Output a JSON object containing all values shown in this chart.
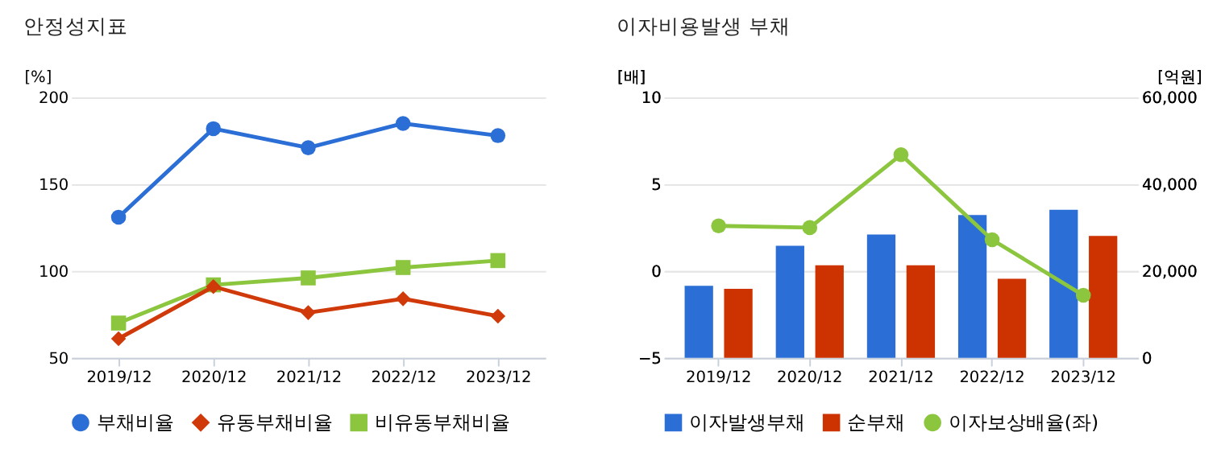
{
  "chart_data": [
    {
      "type": "line",
      "title": "안정성지표",
      "ylabel": "[%]",
      "categories": [
        "2019/12",
        "2020/12",
        "2021/12",
        "2022/12",
        "2023/12"
      ],
      "ylim": [
        50,
        200
      ],
      "yticks": [
        50,
        100,
        150,
        200
      ],
      "grid": "y",
      "legend": "bottom",
      "line_style": "solid",
      "series": [
        {
          "name": "부채비율",
          "color": "#2b6fd6",
          "marker": "circle",
          "values": [
            131,
            182,
            171,
            185,
            178
          ]
        },
        {
          "name": "유동부채비율",
          "color": "#d03a0b",
          "marker": "diamond",
          "values": [
            61,
            91,
            76,
            84,
            74
          ]
        },
        {
          "name": "비유동부채비율",
          "color": "#8cc63f",
          "marker": "square",
          "values": [
            70,
            92,
            96,
            102,
            106
          ]
        }
      ]
    },
    {
      "type": "bar",
      "title": "이자비용발생 부채",
      "ylabel": "[배]",
      "y2label": "[억원]",
      "categories": [
        "2019/12",
        "2020/12",
        "2021/12",
        "2022/12",
        "2023/12"
      ],
      "ylim": [
        -5,
        10
      ],
      "yticks": [
        -5,
        0,
        5,
        10
      ],
      "y2lim": [
        0,
        60000
      ],
      "y2ticks": [
        0,
        {
          "value": 20000,
          "label": "20,000"
        },
        {
          "value": 40000,
          "label": "40,000"
        },
        {
          "value": 60000,
          "label": "60,000"
        }
      ],
      "grid": "y",
      "legend": "bottom",
      "series": [
        {
          "name": "이자발생부채",
          "color": "#2b6fd6",
          "axis": "y2",
          "values": [
            16600,
            25800,
            28400,
            32900,
            34100
          ]
        },
        {
          "name": "순부채",
          "color": "#cc3300",
          "axis": "y2",
          "values": [
            15900,
            21300,
            21300,
            18200,
            28100
          ]
        },
        {
          "name": "이자보상배율(좌)",
          "type": "line",
          "color": "#8cc63f",
          "marker": "circle",
          "axis": "y",
          "values": [
            2.6,
            2.5,
            6.7,
            1.8,
            -1.4
          ]
        }
      ]
    }
  ]
}
